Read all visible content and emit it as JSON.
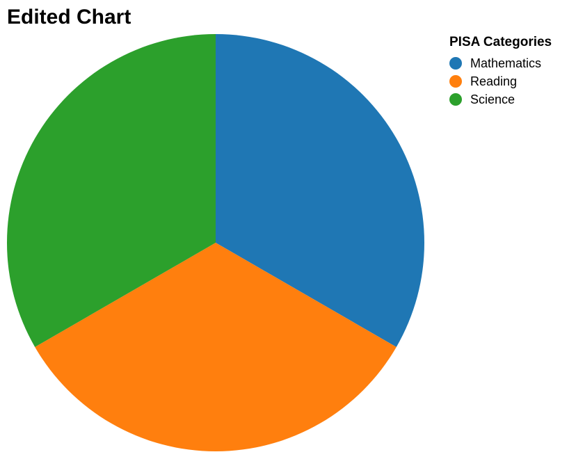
{
  "chart_data": {
    "type": "pie",
    "title": "Edited Chart",
    "legend": {
      "title": "PISA Categories",
      "placement": "top-right"
    },
    "slices": [
      {
        "label": "Mathematics",
        "value": 1,
        "color": "#1f77b4"
      },
      {
        "label": "Reading",
        "value": 1,
        "color": "#ff7f0e"
      },
      {
        "label": "Science",
        "value": 1,
        "color": "#2ca02c"
      }
    ]
  }
}
